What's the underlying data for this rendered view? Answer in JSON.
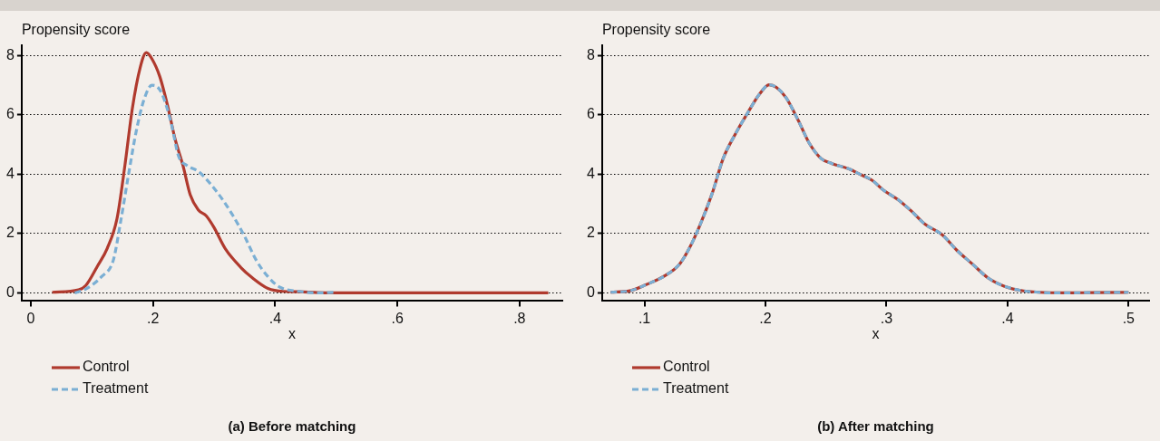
{
  "chart_data": [
    {
      "type": "line",
      "title": "(a) Before matching",
      "xlabel": "x",
      "ylabel": "Propensity score",
      "xlim": [
        -0.015,
        0.87
      ],
      "ylim": [
        -0.25,
        8.35
      ],
      "xticks": [
        {
          "value": 0,
          "label": "0"
        },
        {
          "value": 0.2,
          "label": ".2"
        },
        {
          "value": 0.4,
          "label": ".4"
        },
        {
          "value": 0.6,
          "label": ".6"
        },
        {
          "value": 0.8,
          "label": ".8"
        }
      ],
      "yticks": [
        0,
        2,
        4,
        6,
        8
      ],
      "grid": "y",
      "legend": "bottom left",
      "marker": "none",
      "series": [
        {
          "name": "Control",
          "color": "#b03a2e",
          "line_style": "solid",
          "x": [
            0.035,
            0.078,
            0.09,
            0.109,
            0.125,
            0.141,
            0.154,
            0.166,
            0.179,
            0.189,
            0.198,
            0.211,
            0.224,
            0.236,
            0.249,
            0.261,
            0.274,
            0.287,
            0.3,
            0.318,
            0.344,
            0.363,
            0.388,
            0.413,
            0.439,
            0.47,
            0.534,
            0.847
          ],
          "values": [
            0.02,
            0.1,
            0.25,
            0.9,
            1.5,
            2.5,
            4.3,
            6.2,
            7.6,
            8.1,
            7.9,
            7.3,
            6.3,
            5.2,
            4.3,
            3.3,
            2.8,
            2.6,
            2.2,
            1.5,
            0.85,
            0.5,
            0.15,
            0.05,
            0.04,
            0.01,
            0,
            0
          ]
        },
        {
          "name": "Treatment",
          "color": "#7bafd4",
          "line_style": "dashed",
          "x": [
            0.072,
            0.09,
            0.116,
            0.135,
            0.147,
            0.16,
            0.173,
            0.185,
            0.198,
            0.207,
            0.217,
            0.23,
            0.242,
            0.255,
            0.274,
            0.293,
            0.312,
            0.331,
            0.35,
            0.369,
            0.388,
            0.407,
            0.439,
            0.47,
            0.499
          ],
          "values": [
            0,
            0.13,
            0.55,
            1.1,
            2.4,
            4.0,
            5.5,
            6.5,
            7.0,
            6.95,
            6.6,
            5.7,
            4.6,
            4.3,
            4.1,
            3.7,
            3.2,
            2.6,
            1.9,
            1.1,
            0.55,
            0.2,
            0.05,
            0,
            0.02
          ]
        }
      ]
    },
    {
      "type": "line",
      "title": "(b) After matching",
      "xlabel": "x",
      "ylabel": "Propensity score",
      "xlim": [
        0.065,
        0.517
      ],
      "ylim": [
        -0.25,
        8.35
      ],
      "xticks": [
        {
          "value": 0.1,
          "label": ".1"
        },
        {
          "value": 0.2,
          "label": ".2"
        },
        {
          "value": 0.3,
          "label": ".3"
        },
        {
          "value": 0.4,
          "label": ".4"
        },
        {
          "value": 0.5,
          "label": ".5"
        }
      ],
      "yticks": [
        0,
        2,
        4,
        6,
        8
      ],
      "grid": "y",
      "legend": "bottom left",
      "marker": "none",
      "series": [
        {
          "name": "Control",
          "color": "#b03a2e",
          "line_style": "solid",
          "x": [
            0.072,
            0.088,
            0.101,
            0.117,
            0.129,
            0.137,
            0.146,
            0.156,
            0.165,
            0.175,
            0.185,
            0.195,
            0.203,
            0.209,
            0.217,
            0.227,
            0.236,
            0.246,
            0.255,
            0.269,
            0.278,
            0.288,
            0.297,
            0.31,
            0.32,
            0.332,
            0.346,
            0.358,
            0.371,
            0.384,
            0.397,
            0.41,
            0.426,
            0.448,
            0.471,
            0.5
          ],
          "values": [
            0.02,
            0.07,
            0.27,
            0.58,
            0.97,
            1.5,
            2.3,
            3.36,
            4.53,
            5.35,
            6.05,
            6.7,
            7.02,
            6.93,
            6.58,
            5.82,
            5.06,
            4.53,
            4.36,
            4.18,
            4.0,
            3.8,
            3.48,
            3.13,
            2.78,
            2.31,
            1.96,
            1.44,
            0.97,
            0.5,
            0.23,
            0.09,
            0.02,
            0,
            0.01,
            0.02
          ]
        },
        {
          "name": "Treatment",
          "color": "#7bafd4",
          "line_style": "dashed",
          "x": [
            0.072,
            0.088,
            0.101,
            0.117,
            0.129,
            0.137,
            0.146,
            0.156,
            0.165,
            0.175,
            0.185,
            0.195,
            0.203,
            0.209,
            0.217,
            0.227,
            0.236,
            0.246,
            0.255,
            0.269,
            0.278,
            0.288,
            0.297,
            0.31,
            0.32,
            0.332,
            0.346,
            0.358,
            0.371,
            0.384,
            0.397,
            0.41,
            0.426,
            0.448,
            0.471,
            0.5
          ],
          "values": [
            0.02,
            0.07,
            0.27,
            0.58,
            0.97,
            1.5,
            2.3,
            3.36,
            4.53,
            5.35,
            6.05,
            6.7,
            7.02,
            6.93,
            6.58,
            5.82,
            5.06,
            4.53,
            4.36,
            4.18,
            4.0,
            3.8,
            3.48,
            3.13,
            2.78,
            2.31,
            1.96,
            1.44,
            0.97,
            0.5,
            0.23,
            0.09,
            0.02,
            0,
            0.01,
            0.02
          ]
        }
      ]
    }
  ]
}
